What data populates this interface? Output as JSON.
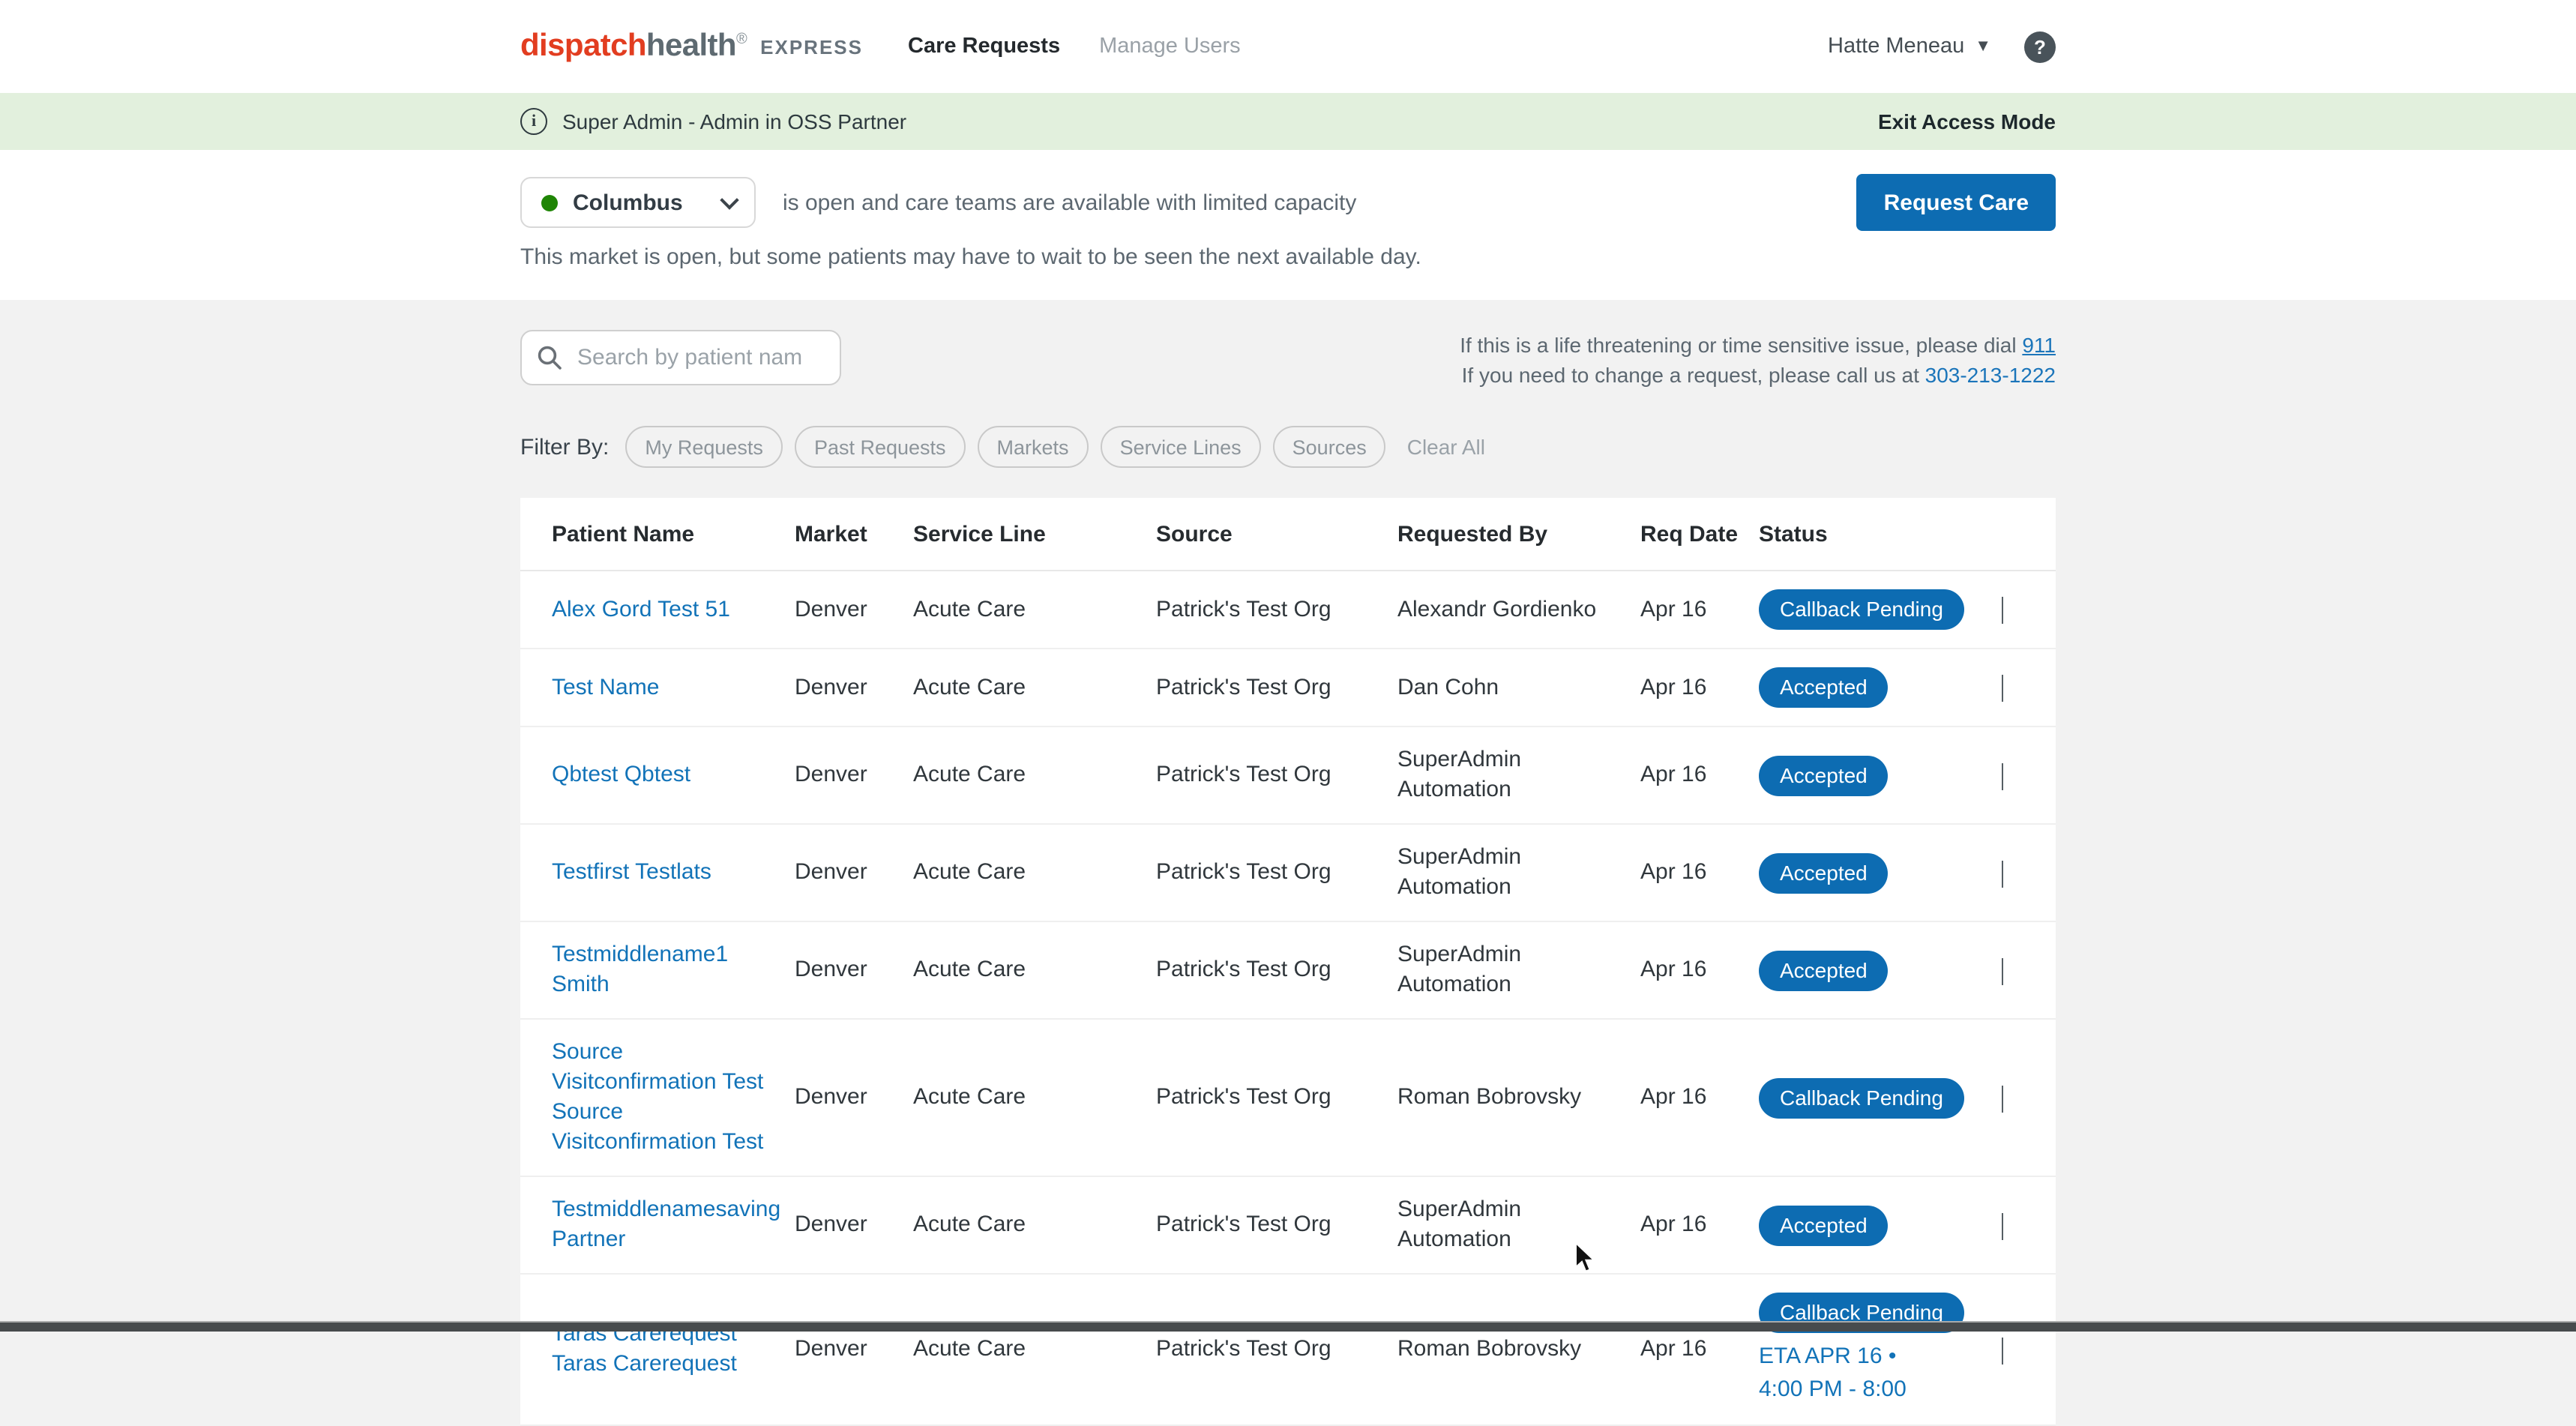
{
  "header": {
    "logo": {
      "dispatch": "dispatch",
      "health": "health",
      "reg": "®"
    },
    "express": "EXPRESS",
    "nav": {
      "care_requests": "Care Requests",
      "manage_users": "Manage Users"
    },
    "user_name": "Hatte Meneau",
    "help_glyph": "?"
  },
  "access_banner": {
    "info_glyph": "i",
    "text": "Super Admin - Admin in OSS Partner",
    "action": "Exit Access Mode"
  },
  "market_bar": {
    "market": "Columbus",
    "status_text": "is open and care teams are available with limited capacity",
    "subtext": "This market is open, but some patients may have to wait to be seen the next available day.",
    "request_button": "Request Care"
  },
  "search": {
    "placeholder": "Search by patient nam"
  },
  "emergency": {
    "line1_prefix": "If this is a life threatening or time sensitive issue, please dial ",
    "line1_link": "911",
    "line2_prefix": "If you need to change a request, please call us at ",
    "line2_link": "303-213-1222"
  },
  "filters": {
    "label": "Filter By:",
    "chips": [
      "My Requests",
      "Past Requests",
      "Markets",
      "Service Lines",
      "Sources"
    ],
    "clear": "Clear All"
  },
  "table": {
    "columns": [
      "Patient Name",
      "Market",
      "Service Line",
      "Source",
      "Requested By",
      "Req Date",
      "Status"
    ],
    "rows": [
      {
        "name_lines": [
          "Alex Gord Test 51"
        ],
        "market": "Denver",
        "service_line": "Acute Care",
        "source": "Patrick's Test Org",
        "requested_by_lines": [
          "Alexandr Gordienko"
        ],
        "req_date": "Apr 16",
        "status": "Callback Pending"
      },
      {
        "name_lines": [
          "Test Name"
        ],
        "market": "Denver",
        "service_line": "Acute Care",
        "source": "Patrick's Test Org",
        "requested_by_lines": [
          "Dan Cohn"
        ],
        "req_date": "Apr 16",
        "status": "Accepted"
      },
      {
        "name_lines": [
          "Qbtest Qbtest"
        ],
        "market": "Denver",
        "service_line": "Acute Care",
        "source": "Patrick's Test Org",
        "requested_by_lines": [
          "SuperAdmin",
          "Automation"
        ],
        "req_date": "Apr 16",
        "status": "Accepted"
      },
      {
        "name_lines": [
          "Testfirst Testlats"
        ],
        "market": "Denver",
        "service_line": "Acute Care",
        "source": "Patrick's Test Org",
        "requested_by_lines": [
          "SuperAdmin",
          "Automation"
        ],
        "req_date": "Apr 16",
        "status": "Accepted"
      },
      {
        "name_lines": [
          "Testmiddlename1",
          "Smith"
        ],
        "market": "Denver",
        "service_line": "Acute Care",
        "source": "Patrick's Test Org",
        "requested_by_lines": [
          "SuperAdmin",
          "Automation"
        ],
        "req_date": "Apr 16",
        "status": "Accepted"
      },
      {
        "name_lines": [
          "Source",
          "Visitconfirmation Test",
          "Source",
          "Visitconfirmation Test"
        ],
        "market": "Denver",
        "service_line": "Acute Care",
        "source": "Patrick's Test Org",
        "requested_by_lines": [
          "Roman Bobrovsky"
        ],
        "req_date": "Apr 16",
        "status": "Callback Pending"
      },
      {
        "name_lines": [
          "Testmiddlenamesaving",
          "Partner"
        ],
        "market": "Denver",
        "service_line": "Acute Care",
        "source": "Patrick's Test Org",
        "requested_by_lines": [
          "SuperAdmin",
          "Automation"
        ],
        "req_date": "Apr 16",
        "status": "Accepted"
      },
      {
        "name_lines": [
          "Taras Carerequest",
          "Taras Carerequest"
        ],
        "market": "Denver",
        "service_line": "Acute Care",
        "source": "Patrick's Test Org",
        "requested_by_lines": [
          "Roman Bobrovsky"
        ],
        "req_date": "Apr 16",
        "status": "Callback Pending",
        "eta_lines": [
          "ETA APR 16 •",
          "4:00 PM - 8:00"
        ]
      }
    ]
  },
  "colors": {
    "accent_blue": "#0d6cb2",
    "link_blue": "#1273b8",
    "banner_green": "#e2f0dd",
    "market_open_green": "#1f8505",
    "logo_red": "#e23d20",
    "logo_gray": "#5e6a71",
    "page_gray": "#f2f2f2"
  }
}
